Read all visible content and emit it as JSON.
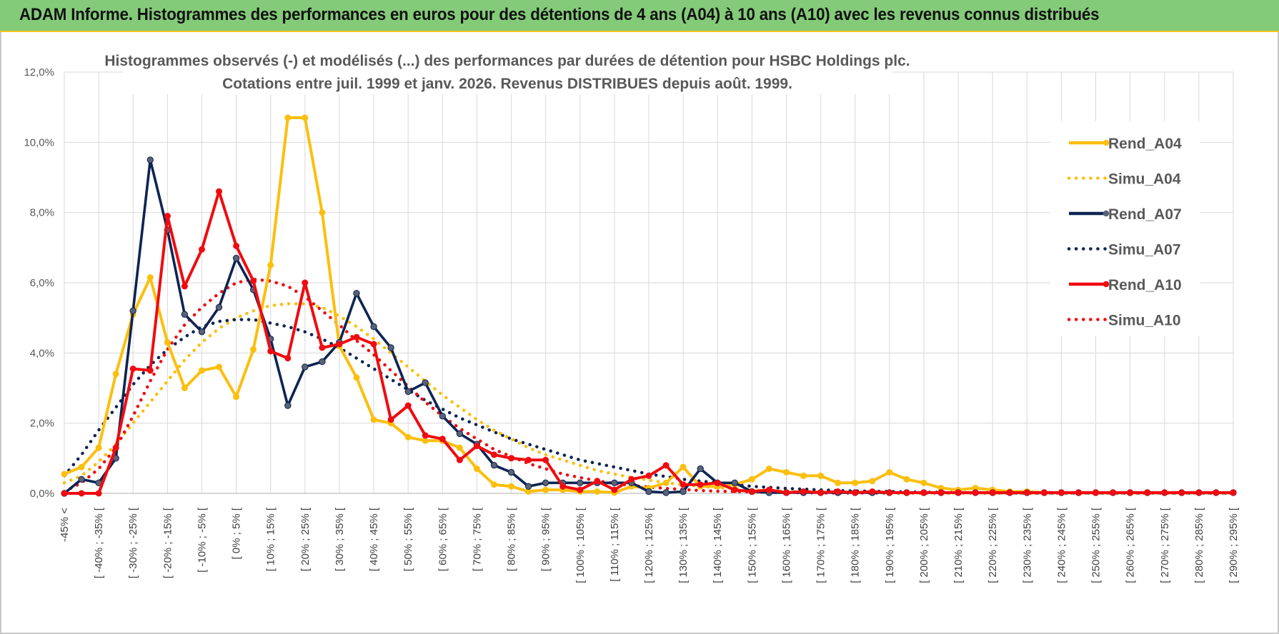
{
  "banner": {
    "title": "ADAM Informe. Histogrammes des performances en euros pour des détentions de 4 ans (A04) à 10 ans (A10) avec les revenus connus distribués"
  },
  "colors": {
    "banner_bg": "#84cb79",
    "accent": "#f7c31c",
    "A04": "#fbbf0f",
    "A07": "#0e2453",
    "A10": "#ef0c10",
    "grid": "#d9d9d9"
  },
  "chart_data": {
    "type": "line",
    "title_lines": [
      "Histogrammes observés (-) et modélisés (...) des performances par durées de détention pour HSBC Holdings plc.",
      "Cotations entre juil. 1999 et janv. 2026. Revenus DISTRIBUES depuis août. 1999."
    ],
    "ylim": [
      0,
      12
    ],
    "yticks": [
      "0,0%",
      "2,0%",
      "4,0%",
      "6,0%",
      "8,0%",
      "10,0%",
      "12,0%"
    ],
    "x_labels": [
      "-45% <",
      "[ -40% ; -35% [",
      "[ -30% ; -25% [",
      "[ -20% ; -15% [",
      "[ -10% ; -5% [",
      "[ 0% ; 5% [",
      "[ 10% ; 15% [",
      "[ 20% ; 25% [",
      "[ 30% ; 35% [",
      "[ 40% ; 45% [",
      "[ 50% ; 55% [",
      "[ 60% ; 65% [",
      "[ 70% ; 75% [",
      "[ 80% ; 85% [",
      "[ 90% ; 95% [",
      "[ 100% ; 105% [",
      "[ 110% ; 115% [",
      "[ 120% ; 125% [",
      "[ 130% ; 135% [",
      "[ 140% ; 145% [",
      "[ 150% ; 155% [",
      "[ 160% ; 165% [",
      "[ 170% ; 175% [",
      "[ 180% ; 185% [",
      "[ 190% ; 195% [",
      "[ 200% ; 205% [",
      "[ 210% ; 215% [",
      "[ 220% ; 225% [",
      "[ 230% ; 235% [",
      "[ 240% ; 245% [",
      "[ 250% ; 255% [",
      "[ 260% ; 265% [",
      "[ 270% ; 275% [",
      "[ 280% ; 285% [",
      "[ 290% ; 295% ["
    ],
    "n_points": 69,
    "series": [
      {
        "name": "Rend_A04",
        "style": "solid",
        "color": "#fbbf0f",
        "values": [
          0.55,
          0.75,
          1.3,
          3.4,
          5.1,
          6.15,
          4.3,
          3.0,
          3.5,
          3.6,
          2.75,
          4.1,
          6.5,
          10.7,
          10.7,
          8.0,
          4.2,
          3.3,
          2.1,
          2.0,
          1.6,
          1.5,
          1.5,
          1.3,
          0.7,
          0.25,
          0.2,
          0.05,
          0.1,
          0.1,
          0.05,
          0.05,
          0.02,
          0.2,
          0.15,
          0.3,
          0.75,
          0.2,
          0.2,
          0.25,
          0.4,
          0.7,
          0.6,
          0.5,
          0.5,
          0.3,
          0.3,
          0.35,
          0.6,
          0.4,
          0.3,
          0.15,
          0.1,
          0.15,
          0.1,
          0.05,
          0.05,
          0.02,
          0.02,
          0.02,
          0.02,
          0.02,
          0.02,
          0.02,
          0.02,
          0.02,
          0.02,
          0.02,
          0.02
        ]
      },
      {
        "name": "Simu_A04",
        "style": "dotted",
        "color": "#fbbf0f",
        "values": [
          0.3,
          0.5,
          0.9,
          1.4,
          2.0,
          2.6,
          3.2,
          3.8,
          4.3,
          4.7,
          5.0,
          5.2,
          5.35,
          5.4,
          5.4,
          5.3,
          5.05,
          4.75,
          4.4,
          4.0,
          3.6,
          3.2,
          2.8,
          2.45,
          2.1,
          1.8,
          1.55,
          1.3,
          1.1,
          0.95,
          0.8,
          0.65,
          0.55,
          0.45,
          0.38,
          0.3,
          0.25,
          0.2,
          0.16,
          0.13,
          0.1,
          0.08,
          0.06,
          0.05,
          0.04,
          0.03,
          0.03,
          0.02,
          0.02,
          0.01,
          0.01,
          0.01,
          0.01,
          0.01,
          0.01,
          0.01,
          0.01,
          0.01,
          0.01,
          0.01,
          0.01,
          0.01,
          0.01,
          0.01,
          0.01,
          0.01,
          0.01,
          0.01,
          0.01
        ]
      },
      {
        "name": "Rend_A07",
        "style": "solid",
        "color": "#0e2453",
        "values": [
          0.0,
          0.4,
          0.3,
          1.0,
          5.2,
          9.5,
          7.5,
          5.1,
          4.6,
          5.3,
          6.7,
          5.8,
          4.4,
          2.5,
          3.6,
          3.75,
          4.3,
          5.7,
          4.75,
          4.15,
          2.9,
          3.15,
          2.2,
          1.7,
          1.4,
          0.8,
          0.6,
          0.2,
          0.3,
          0.3,
          0.3,
          0.3,
          0.3,
          0.3,
          0.05,
          0.02,
          0.05,
          0.7,
          0.3,
          0.3,
          0.05,
          0.02,
          0.02,
          0.02,
          0.02,
          0.02,
          0.02,
          0.02,
          0.02,
          0.02,
          0.02,
          0.02,
          0.02,
          0.02,
          0.02,
          0.02,
          0.02,
          0.02,
          0.02,
          0.02,
          0.02,
          0.02,
          0.02,
          0.02,
          0.02,
          0.02,
          0.02,
          0.02,
          0.02
        ]
      },
      {
        "name": "Simu_A07",
        "style": "dotted",
        "color": "#0e2453",
        "values": [
          0.5,
          1.1,
          1.8,
          2.45,
          3.1,
          3.65,
          4.1,
          4.45,
          4.75,
          4.9,
          4.95,
          4.95,
          4.85,
          4.75,
          4.6,
          4.4,
          4.15,
          3.85,
          3.55,
          3.25,
          2.95,
          2.65,
          2.4,
          2.15,
          1.95,
          1.75,
          1.55,
          1.4,
          1.25,
          1.1,
          0.95,
          0.85,
          0.75,
          0.65,
          0.55,
          0.48,
          0.4,
          0.35,
          0.3,
          0.25,
          0.2,
          0.17,
          0.14,
          0.12,
          0.1,
          0.08,
          0.07,
          0.06,
          0.05,
          0.04,
          0.03,
          0.03,
          0.02,
          0.02,
          0.02,
          0.01,
          0.01,
          0.01,
          0.01,
          0.01,
          0.01,
          0.01,
          0.01,
          0.01,
          0.01,
          0.01,
          0.01,
          0.01,
          0.01
        ]
      },
      {
        "name": "Rend_A10",
        "style": "solid",
        "color": "#ef0c10",
        "values": [
          0.0,
          0.0,
          0.0,
          1.3,
          3.55,
          3.5,
          7.9,
          5.9,
          6.95,
          8.6,
          7.05,
          6.05,
          4.05,
          3.85,
          6.0,
          4.15,
          4.25,
          4.45,
          4.25,
          2.1,
          2.5,
          1.65,
          1.55,
          0.95,
          1.35,
          1.1,
          1.0,
          0.95,
          0.95,
          0.2,
          0.1,
          0.35,
          0.1,
          0.4,
          0.5,
          0.8,
          0.25,
          0.25,
          0.3,
          0.1,
          0.05,
          0.1,
          0.02,
          0.05,
          0.02,
          0.05,
          0.02,
          0.05,
          0.02,
          0.02,
          0.02,
          0.02,
          0.02,
          0.02,
          0.02,
          0.02,
          0.02,
          0.02,
          0.02,
          0.02,
          0.02,
          0.02,
          0.02,
          0.02,
          0.02,
          0.02,
          0.02,
          0.02,
          0.02
        ]
      },
      {
        "name": "Simu_A10",
        "style": "dotted",
        "color": "#ef0c10",
        "values": [
          0.05,
          0.3,
          0.7,
          1.3,
          2.2,
          3.2,
          4.1,
          4.8,
          5.3,
          5.7,
          6.0,
          6.1,
          6.05,
          5.9,
          5.6,
          5.2,
          4.8,
          4.35,
          3.95,
          3.5,
          3.05,
          2.6,
          2.2,
          1.85,
          1.55,
          1.25,
          1.05,
          0.85,
          0.7,
          0.55,
          0.45,
          0.36,
          0.28,
          0.22,
          0.18,
          0.14,
          0.11,
          0.08,
          0.06,
          0.05,
          0.04,
          0.03,
          0.02,
          0.02,
          0.01,
          0.01,
          0.01,
          0.01,
          0.01,
          0.01,
          0.01,
          0.01,
          0.01,
          0.01,
          0.01,
          0.01,
          0.01,
          0.01,
          0.01,
          0.01,
          0.01,
          0.01,
          0.01,
          0.01,
          0.01,
          0.01,
          0.01,
          0.01,
          0.01
        ]
      }
    ],
    "legend": [
      "Rend_A04",
      "Simu_A04",
      "Rend_A07",
      "Simu_A07",
      "Rend_A10",
      "Simu_A10"
    ],
    "legend_position": "right",
    "grid": true
  }
}
